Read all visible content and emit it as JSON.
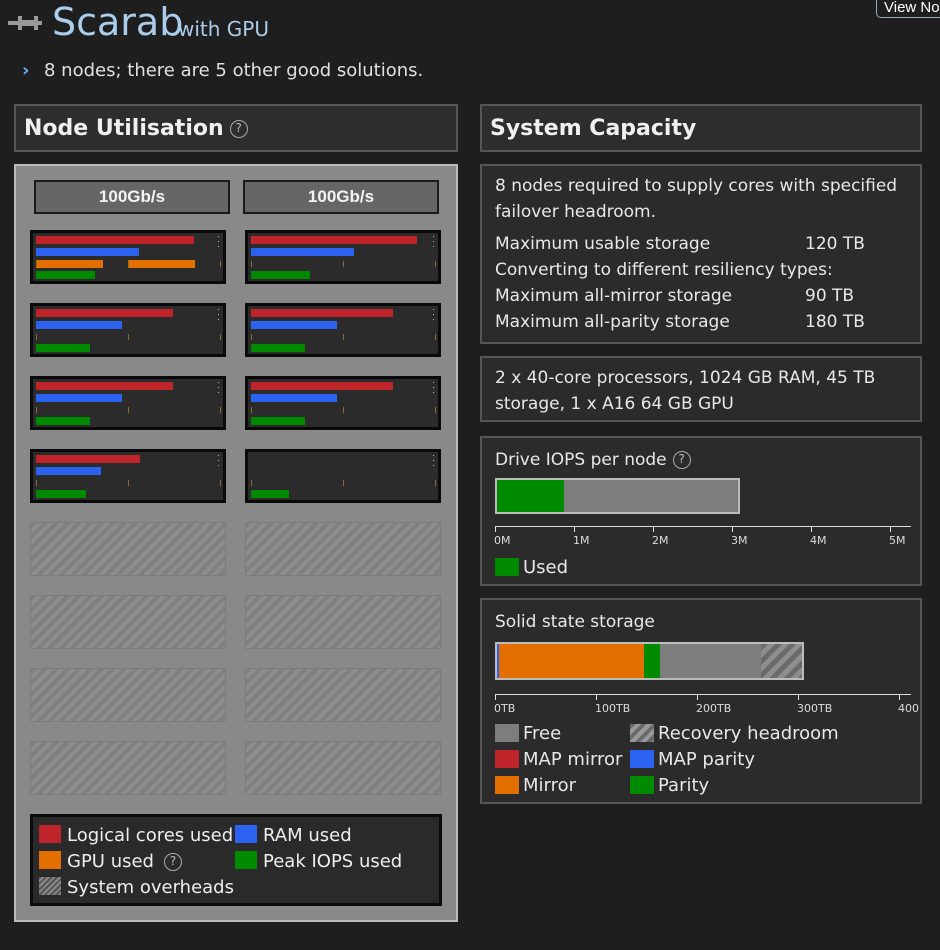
{
  "header": {
    "title": "Scarab",
    "subtitle": "with GPU",
    "view_button": "View No",
    "summary": "8 nodes; there are 5 other good solutions."
  },
  "node_util": {
    "heading": "Node Utilisation",
    "help": "?",
    "links": [
      "100Gb/s",
      "100Gb/s"
    ],
    "nodes": [
      {
        "cores": 0.88,
        "ram": 0.57,
        "gpu": [
          0.37,
          0.37
        ],
        "iops": 0.33
      },
      {
        "cores": 0.92,
        "ram": 0.57,
        "gpu": [],
        "iops": 0.33
      },
      {
        "cores": 0.76,
        "ram": 0.48,
        "gpu": [],
        "iops": 0.3
      },
      {
        "cores": 0.79,
        "ram": 0.48,
        "gpu": [],
        "iops": 0.3
      },
      {
        "cores": 0.76,
        "ram": 0.48,
        "gpu": [],
        "iops": 0.3
      },
      {
        "cores": 0.79,
        "ram": 0.48,
        "gpu": [],
        "iops": 0.3
      },
      {
        "cores": 0.58,
        "ram": 0.36,
        "gpu": [],
        "iops": 0.28
      },
      {
        "cores": 0.0,
        "ram": 0.0,
        "gpu": [],
        "iops": 0.21
      }
    ],
    "empty_slots": 8,
    "legend": {
      "cores": "Logical cores used",
      "ram": "RAM used",
      "gpu": "GPU used",
      "iops": "Peak IOPS used",
      "overheads": "System overheads"
    },
    "colors": {
      "cores": "#c0242b",
      "ram": "#2b63f0",
      "gpu": "#e36f00",
      "iops": "#008a00"
    }
  },
  "capacity": {
    "heading": "System Capacity",
    "summary_line1": "8 nodes required to supply cores with specified",
    "summary_line2": "failover headroom.",
    "rows": [
      {
        "label": "Maximum usable storage",
        "value": "120 TB"
      },
      {
        "label": "Converting to different resiliency types:",
        "value": ""
      },
      {
        "label": "Maximum all-mirror storage",
        "value": "90 TB"
      },
      {
        "label": "Maximum all-parity storage",
        "value": "180 TB"
      }
    ],
    "spec_line1": "2 x 40-core processors, 1024 GB RAM, 45 TB",
    "spec_line2": "storage, 1 x A16 64 GB GPU",
    "iops": {
      "title": "Drive IOPS per node",
      "used_M": 0.85,
      "total_M": 3.1,
      "axis_max_M": 5.2,
      "ticks": [
        "0M",
        "1M",
        "2M",
        "3M",
        "4M",
        "5M"
      ],
      "legend_used": "Used"
    },
    "ssd": {
      "title": "Solid state storage",
      "mirror_TB": 146,
      "parity_TB": 15,
      "free_TB": 100,
      "headroom_TB": 45,
      "axis_max_TB": 410,
      "ticks": [
        "0TB",
        "100TB",
        "200TB",
        "300TB",
        "400"
      ],
      "legend": {
        "free": "Free",
        "headroom": "Recovery headroom",
        "map_mirror": "MAP mirror",
        "map_parity": "MAP parity",
        "mirror": "Mirror",
        "parity": "Parity"
      }
    }
  }
}
